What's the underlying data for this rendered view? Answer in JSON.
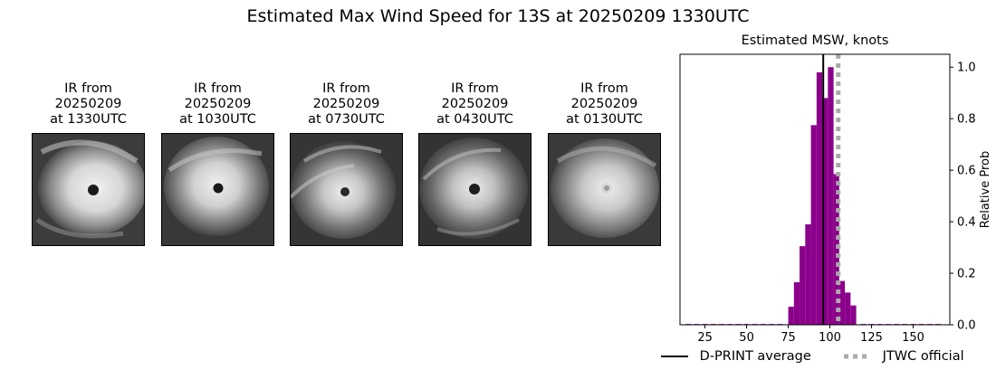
{
  "suptitle": "Estimated Max Wind Speed for 13S at 20250209 1330UTC",
  "panels": [
    {
      "line1": "IR from",
      "line2": "20250209",
      "line3": "at 1330UTC"
    },
    {
      "line1": "IR from",
      "line2": "20250209",
      "line3": "at 1030UTC"
    },
    {
      "line1": "IR from",
      "line2": "20250209",
      "line3": "at 0730UTC"
    },
    {
      "line1": "IR from",
      "line2": "20250209",
      "line3": "at 0430UTC"
    },
    {
      "line1": "IR from",
      "line2": "20250209",
      "line3": "at 0130UTC"
    }
  ],
  "chart_data": {
    "type": "bar",
    "title": "Estimated MSW, knots",
    "xlabel": "",
    "ylabel": "Relative Prob",
    "xlim": [
      10,
      172
    ],
    "ylim": [
      0,
      1.05
    ],
    "xticks": [
      25,
      50,
      75,
      100,
      125,
      150
    ],
    "yticks": [
      0.0,
      0.2,
      0.4,
      0.6,
      0.8,
      1.0
    ],
    "ytick_labels": [
      "0.0",
      "0.2",
      "0.4",
      "0.6",
      "0.8",
      "1.0"
    ],
    "bin_width": 3.4,
    "bins": [
      {
        "x": 15,
        "p": 0.003
      },
      {
        "x": 20,
        "p": 0.003
      },
      {
        "x": 25,
        "p": 0.003
      },
      {
        "x": 30,
        "p": 0.003
      },
      {
        "x": 35,
        "p": 0.003
      },
      {
        "x": 40,
        "p": 0.003
      },
      {
        "x": 45,
        "p": 0.003
      },
      {
        "x": 50,
        "p": 0.003
      },
      {
        "x": 55,
        "p": 0.003
      },
      {
        "x": 60,
        "p": 0.003
      },
      {
        "x": 65,
        "p": 0.003
      },
      {
        "x": 70,
        "p": 0.003
      },
      {
        "x": 76.7,
        "p": 0.07
      },
      {
        "x": 80.1,
        "p": 0.165
      },
      {
        "x": 83.5,
        "p": 0.305
      },
      {
        "x": 86.9,
        "p": 0.39
      },
      {
        "x": 90.3,
        "p": 0.775
      },
      {
        "x": 93.7,
        "p": 0.98
      },
      {
        "x": 97.1,
        "p": 0.88
      },
      {
        "x": 100.5,
        "p": 1.0
      },
      {
        "x": 103.9,
        "p": 0.585
      },
      {
        "x": 107.3,
        "p": 0.17
      },
      {
        "x": 110.7,
        "p": 0.125
      },
      {
        "x": 114.1,
        "p": 0.075
      },
      {
        "x": 120,
        "p": 0.003
      },
      {
        "x": 125,
        "p": 0.003
      },
      {
        "x": 130,
        "p": 0.003
      },
      {
        "x": 135,
        "p": 0.003
      },
      {
        "x": 140,
        "p": 0.003
      },
      {
        "x": 145,
        "p": 0.003
      },
      {
        "x": 150,
        "p": 0.003
      },
      {
        "x": 155,
        "p": 0.003
      },
      {
        "x": 160,
        "p": 0.003
      },
      {
        "x": 165,
        "p": 0.003
      }
    ],
    "dprint_average": 96,
    "jtwc_official": 105,
    "bar_color": "#8b008b",
    "dprint_color": "#000000",
    "jtwc_color": "#aaaaaa",
    "legend": {
      "dprint_label": "D-PRINT average",
      "jtwc_label": "JTWC official",
      "placement": "bottom"
    }
  }
}
